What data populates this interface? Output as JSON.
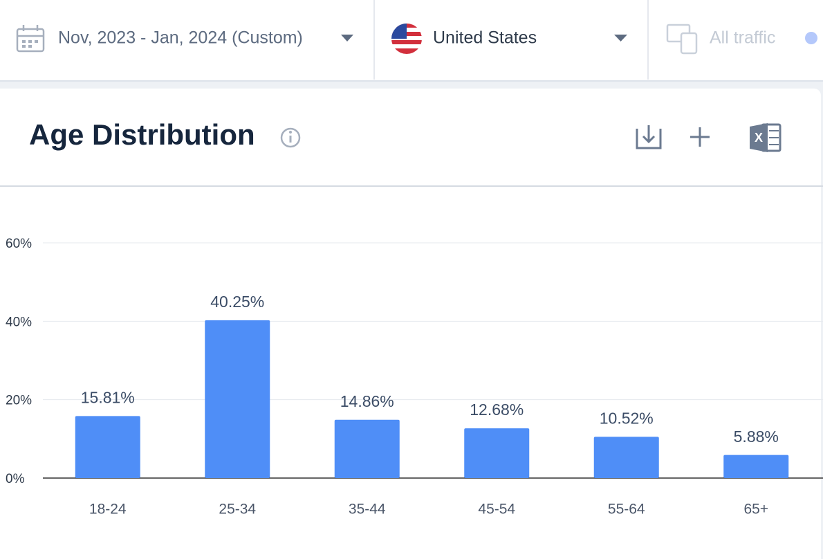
{
  "header": {
    "date_range": "Nov, 2023 - Jan, 2024 (Custom)",
    "country": "United States",
    "traffic": "All traffic"
  },
  "chart_data": {
    "type": "bar",
    "title": "Age Distribution",
    "categories": [
      "18-24",
      "25-34",
      "35-44",
      "45-54",
      "55-64",
      "65+"
    ],
    "values": [
      15.81,
      40.25,
      14.86,
      12.68,
      10.52,
      5.88
    ],
    "value_labels": [
      "15.81%",
      "40.25%",
      "14.86%",
      "12.68%",
      "10.52%",
      "5.88%"
    ],
    "color": "#4f8ef7",
    "ylim": [
      0,
      60
    ],
    "yticks": [
      {
        "value": 0,
        "label": "0%"
      },
      {
        "value": 20,
        "label": "20%"
      },
      {
        "value": 40,
        "label": "40%"
      },
      {
        "value": 60,
        "label": "60%"
      }
    ],
    "grid": true
  }
}
